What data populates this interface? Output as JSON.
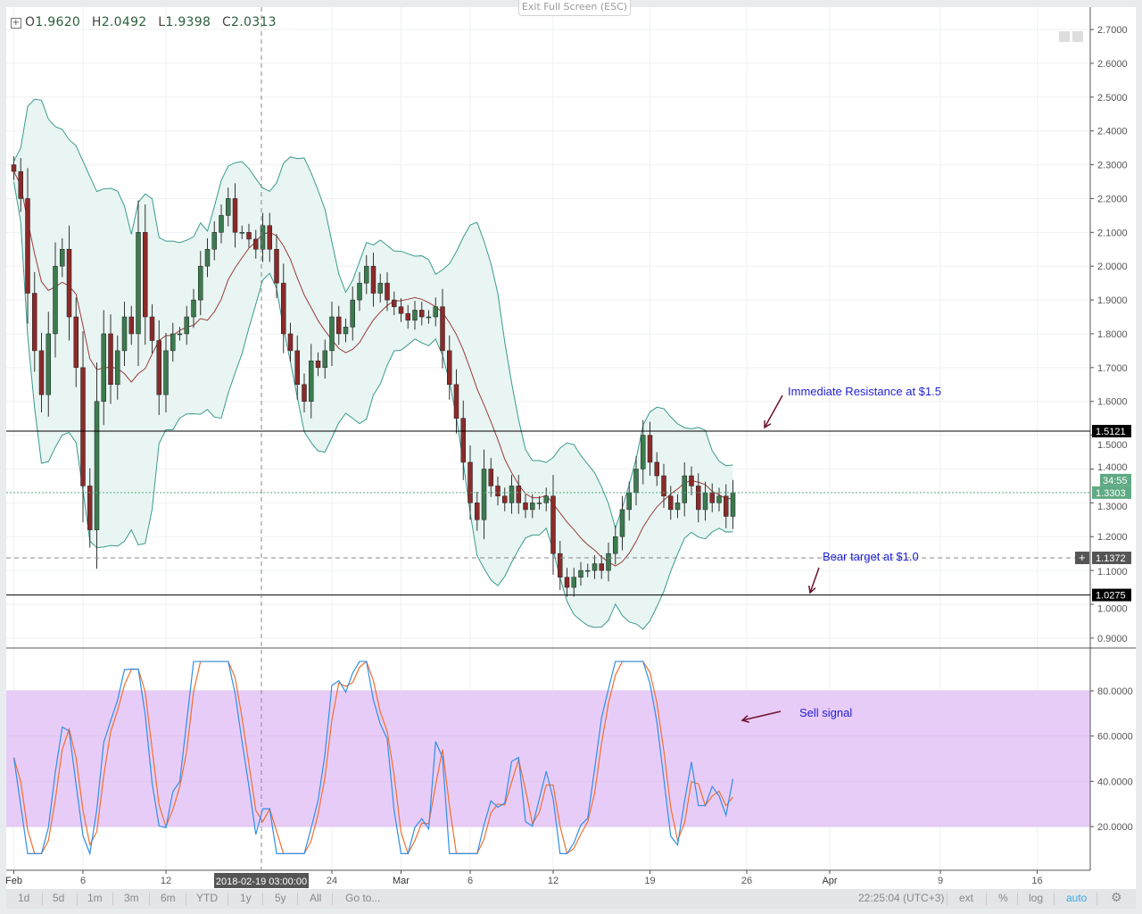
{
  "window": {
    "exit_fullscreen_label": "Exit Full Screen (ESC)"
  },
  "legend": {
    "open_label": "O",
    "open": "1.9620",
    "high_label": "H",
    "high": "2.0492",
    "low_label": "L",
    "low": "1.9398",
    "close_label": "C",
    "close": "2.0313"
  },
  "colors": {
    "up": "#3c7a4f",
    "down": "#8b2a2a",
    "band": "#3a9a8f",
    "band_fill": "#e8f5f2",
    "ma": "#9b3b3b",
    "stoch_k": "#2f8fe8",
    "stoch_d": "#f07030",
    "stoch_fill": "#e8ccf8",
    "accent": "#3ba7e0",
    "price_label": "#5faa84"
  },
  "chart_data": {
    "type": "candlestick",
    "interval_note": "",
    "x_start": "2018-02-01",
    "samples_per_day": 2,
    "closes": [
      2.28,
      2.2,
      1.92,
      1.75,
      1.62,
      1.8,
      2.0,
      2.05,
      1.85,
      1.7,
      1.35,
      1.22,
      1.6,
      1.8,
      1.65,
      1.75,
      1.85,
      1.8,
      2.1,
      1.85,
      1.78,
      1.62,
      1.75,
      1.8,
      1.8,
      1.85,
      1.9,
      2.0,
      2.05,
      2.1,
      2.15,
      2.2,
      2.1,
      2.1,
      2.08,
      2.05,
      2.12,
      2.05,
      1.95,
      1.8,
      1.75,
      1.65,
      1.6,
      1.72,
      1.7,
      1.75,
      1.85,
      1.8,
      1.82,
      1.9,
      1.95,
      2.0,
      1.92,
      1.95,
      1.9,
      1.88,
      1.86,
      1.84,
      1.87,
      1.85,
      1.85,
      1.88,
      1.75,
      1.65,
      1.55,
      1.42,
      1.3,
      1.25,
      1.4,
      1.35,
      1.32,
      1.3,
      1.35,
      1.3,
      1.28,
      1.3,
      1.3,
      1.32,
      1.15,
      1.08,
      1.05,
      1.08,
      1.1,
      1.1,
      1.12,
      1.1,
      1.15,
      1.2,
      1.28,
      1.33,
      1.4,
      1.5,
      1.42,
      1.38,
      1.32,
      1.28,
      1.3,
      1.38,
      1.35,
      1.28,
      1.33,
      1.3,
      1.32,
      1.26,
      1.33
    ],
    "x_ticks": [
      "Feb",
      "6",
      "12",
      "24",
      "Mar",
      "6",
      "12",
      "19",
      "26",
      "Apr",
      "9",
      "16"
    ],
    "y_ticks": [
      "0.9000",
      "1.0000",
      "1.1000",
      "1.2000",
      "1.3000",
      "1.4000",
      "1.5000",
      "1.6000",
      "1.7000",
      "1.8000",
      "1.9000",
      "2.0000",
      "2.1000",
      "2.2000",
      "2.3000",
      "2.4000",
      "2.5000",
      "2.6000",
      "2.7000"
    ],
    "ylim": [
      0.87,
      2.74
    ],
    "indicators": [
      "Bollinger Bands",
      "Moving Average",
      "Stochastic RSI"
    ],
    "stoch_ticks": [
      "20.0000",
      "40.0000",
      "60.0000",
      "80.0000"
    ],
    "stoch_bands": [
      20,
      80
    ],
    "horizontal_lines": [
      {
        "value": 1.5121,
        "label": "1.5121",
        "style": "solid"
      },
      {
        "value": 1.0275,
        "label": "1.0275",
        "style": "solid"
      },
      {
        "value": 1.3303,
        "label": "1.3303",
        "style": "dotted"
      },
      {
        "value": 1.1372,
        "label": "1.1372",
        "style": "crosshair"
      }
    ],
    "countdown": "34:55",
    "crosshair_time": "2018-02-19 03:00:00",
    "annotations": [
      {
        "text": "Immediate Resistance at $1.5"
      },
      {
        "text": "Bear target at $1.0"
      },
      {
        "text": "Sell signal"
      }
    ]
  },
  "toolbar": {
    "ranges": [
      "1d",
      "5d",
      "1m",
      "3m",
      "6m",
      "YTD",
      "1y",
      "5y",
      "All",
      "Go to..."
    ],
    "clock": "22:25:04 (UTC+3)",
    "ext": "ext",
    "percent": "%",
    "log": "log",
    "auto": "auto",
    "settings_icon": "gear-icon"
  }
}
